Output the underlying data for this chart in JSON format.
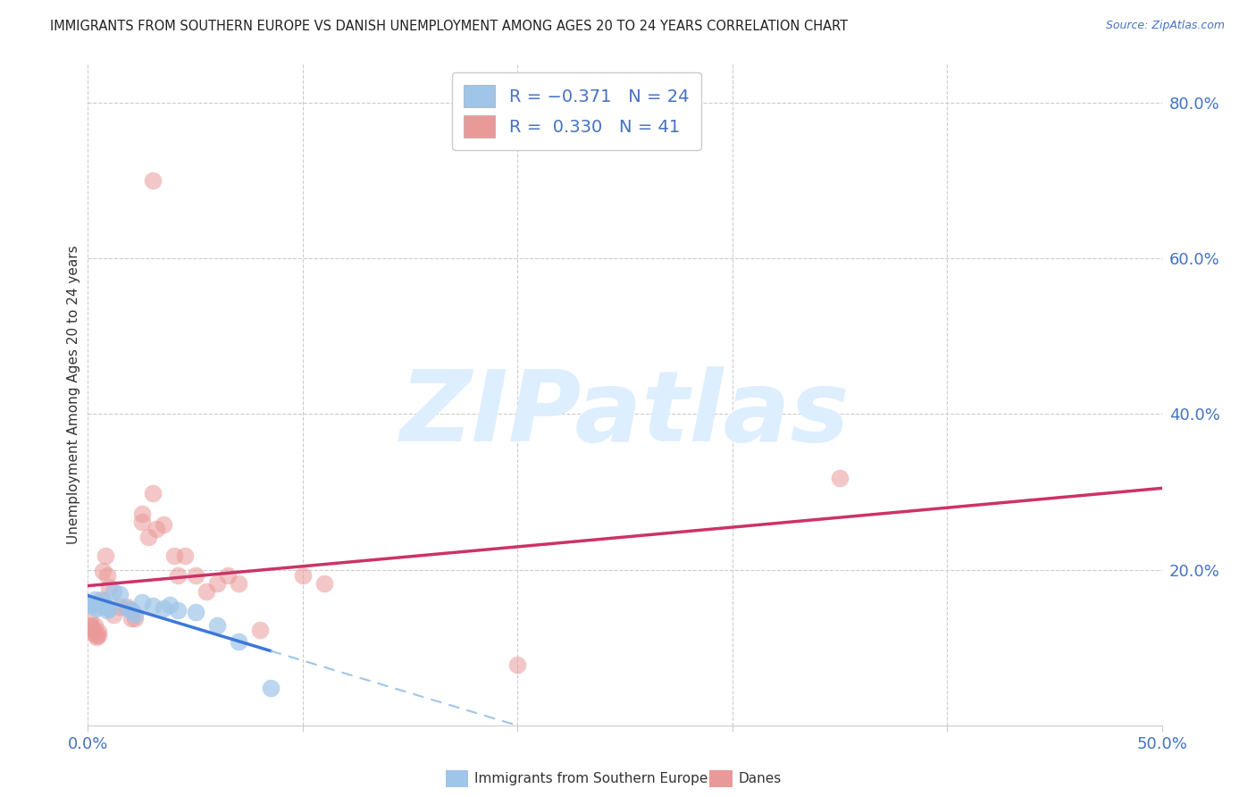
{
  "title": "IMMIGRANTS FROM SOUTHERN EUROPE VS DANISH UNEMPLOYMENT AMONG AGES 20 TO 24 YEARS CORRELATION CHART",
  "source": "Source: ZipAtlas.com",
  "ylabel": "Unemployment Among Ages 20 to 24 years",
  "right_yticks": [
    "80.0%",
    "60.0%",
    "40.0%",
    "20.0%"
  ],
  "right_ytick_vals": [
    0.8,
    0.6,
    0.4,
    0.2
  ],
  "legend_label_blue": "Immigrants from Southern Europe",
  "legend_label_pink": "Danes",
  "blue_color": "#9fc5e8",
  "pink_color": "#ea9999",
  "blue_line_color": "#3c78d8",
  "pink_line_color": "#cc3366",
  "dashed_line_color": "#9fc5e8",
  "blue_scatter": [
    [
      0.001,
      0.155
    ],
    [
      0.002,
      0.155
    ],
    [
      0.003,
      0.162
    ],
    [
      0.004,
      0.15
    ],
    [
      0.005,
      0.152
    ],
    [
      0.006,
      0.157
    ],
    [
      0.007,
      0.16
    ],
    [
      0.008,
      0.153
    ],
    [
      0.009,
      0.148
    ],
    [
      0.01,
      0.15
    ],
    [
      0.012,
      0.172
    ],
    [
      0.015,
      0.168
    ],
    [
      0.018,
      0.15
    ],
    [
      0.02,
      0.148
    ],
    [
      0.022,
      0.142
    ],
    [
      0.025,
      0.158
    ],
    [
      0.03,
      0.154
    ],
    [
      0.035,
      0.15
    ],
    [
      0.038,
      0.155
    ],
    [
      0.042,
      0.148
    ],
    [
      0.05,
      0.145
    ],
    [
      0.06,
      0.128
    ],
    [
      0.07,
      0.108
    ],
    [
      0.085,
      0.048
    ]
  ],
  "pink_scatter": [
    [
      0.001,
      0.128
    ],
    [
      0.001,
      0.133
    ],
    [
      0.002,
      0.126
    ],
    [
      0.002,
      0.122
    ],
    [
      0.003,
      0.128
    ],
    [
      0.003,
      0.118
    ],
    [
      0.004,
      0.116
    ],
    [
      0.004,
      0.113
    ],
    [
      0.005,
      0.12
    ],
    [
      0.005,
      0.116
    ],
    [
      0.006,
      0.162
    ],
    [
      0.007,
      0.198
    ],
    [
      0.008,
      0.218
    ],
    [
      0.009,
      0.192
    ],
    [
      0.01,
      0.178
    ],
    [
      0.012,
      0.142
    ],
    [
      0.015,
      0.152
    ],
    [
      0.018,
      0.152
    ],
    [
      0.02,
      0.138
    ],
    [
      0.02,
      0.148
    ],
    [
      0.022,
      0.138
    ],
    [
      0.025,
      0.262
    ],
    [
      0.025,
      0.272
    ],
    [
      0.028,
      0.242
    ],
    [
      0.03,
      0.298
    ],
    [
      0.032,
      0.252
    ],
    [
      0.035,
      0.258
    ],
    [
      0.04,
      0.218
    ],
    [
      0.042,
      0.192
    ],
    [
      0.045,
      0.218
    ],
    [
      0.05,
      0.192
    ],
    [
      0.055,
      0.172
    ],
    [
      0.06,
      0.182
    ],
    [
      0.065,
      0.192
    ],
    [
      0.07,
      0.182
    ],
    [
      0.08,
      0.122
    ],
    [
      0.1,
      0.192
    ],
    [
      0.11,
      0.182
    ],
    [
      0.2,
      0.078
    ],
    [
      0.35,
      0.318
    ],
    [
      0.03,
      0.7
    ]
  ],
  "xlim": [
    0.0,
    0.5
  ],
  "ylim": [
    0.0,
    0.85
  ],
  "xgrid_ticks": [
    0.0,
    0.1,
    0.2,
    0.3,
    0.4,
    0.5
  ],
  "ygrid_ticks": [
    0.2,
    0.4,
    0.6,
    0.8
  ],
  "background_color": "#ffffff",
  "watermark_text": "ZIPatlas",
  "watermark_color": "#ddeeff"
}
